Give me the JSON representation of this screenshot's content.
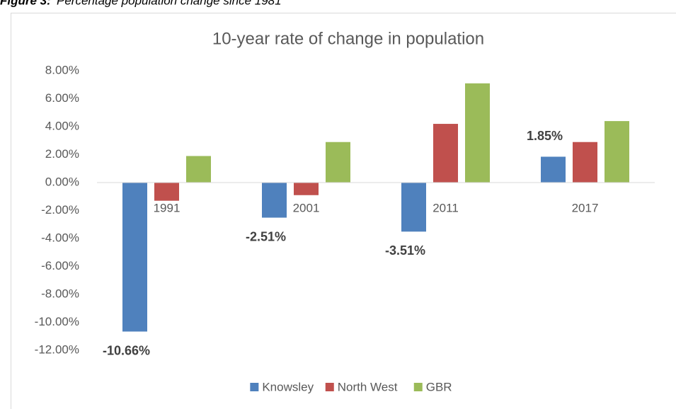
{
  "caption": {
    "label": "Figure 3:",
    "text": "Percentage population change since 1981"
  },
  "chart_data": {
    "type": "bar",
    "title": "10-year rate of change in population",
    "categories": [
      "1991",
      "2001",
      "2011",
      "2017"
    ],
    "series": [
      {
        "name": "Knowsley",
        "color": "#4f81bd",
        "values": [
          -10.66,
          -2.51,
          -3.51,
          1.85
        ],
        "value_labels": [
          "-10.66%",
          "-2.51%",
          "-3.51%",
          "1.85%"
        ]
      },
      {
        "name": "North West",
        "color": "#c0504d",
        "values": [
          -1.3,
          -0.9,
          4.2,
          2.9
        ]
      },
      {
        "name": "GBR",
        "color": "#9bbb59",
        "values": [
          1.9,
          2.9,
          7.1,
          4.4
        ]
      }
    ],
    "ylim": [
      -12,
      8
    ],
    "yticks": [
      {
        "value": -12,
        "label": "-12.00%"
      },
      {
        "value": -10,
        "label": "-10.00%"
      },
      {
        "value": -8,
        "label": "-8.00%"
      },
      {
        "value": -6,
        "label": "-6.00%"
      },
      {
        "value": -4,
        "label": "-4.00%"
      },
      {
        "value": -2,
        "label": "-2.00%"
      },
      {
        "value": 0,
        "label": "0.00%"
      },
      {
        "value": 2,
        "label": "2.00%"
      },
      {
        "value": 4,
        "label": "4.00%"
      },
      {
        "value": 6,
        "label": "6.00%"
      },
      {
        "value": 8,
        "label": "8.00%"
      }
    ],
    "grid": false,
    "legend": "bottom"
  }
}
